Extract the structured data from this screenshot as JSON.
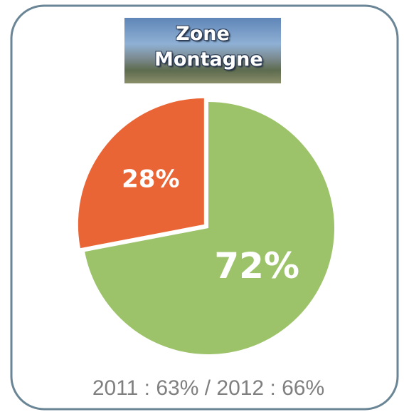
{
  "chart_data": {
    "type": "pie",
    "title": "Zone Montagne",
    "values": [
      72,
      28
    ],
    "value_labels": [
      "72%",
      "28%"
    ],
    "colors": [
      "#9dc36a",
      "#ea6535"
    ],
    "annotation": "2011 : 63% / 2012 : 66%"
  }
}
